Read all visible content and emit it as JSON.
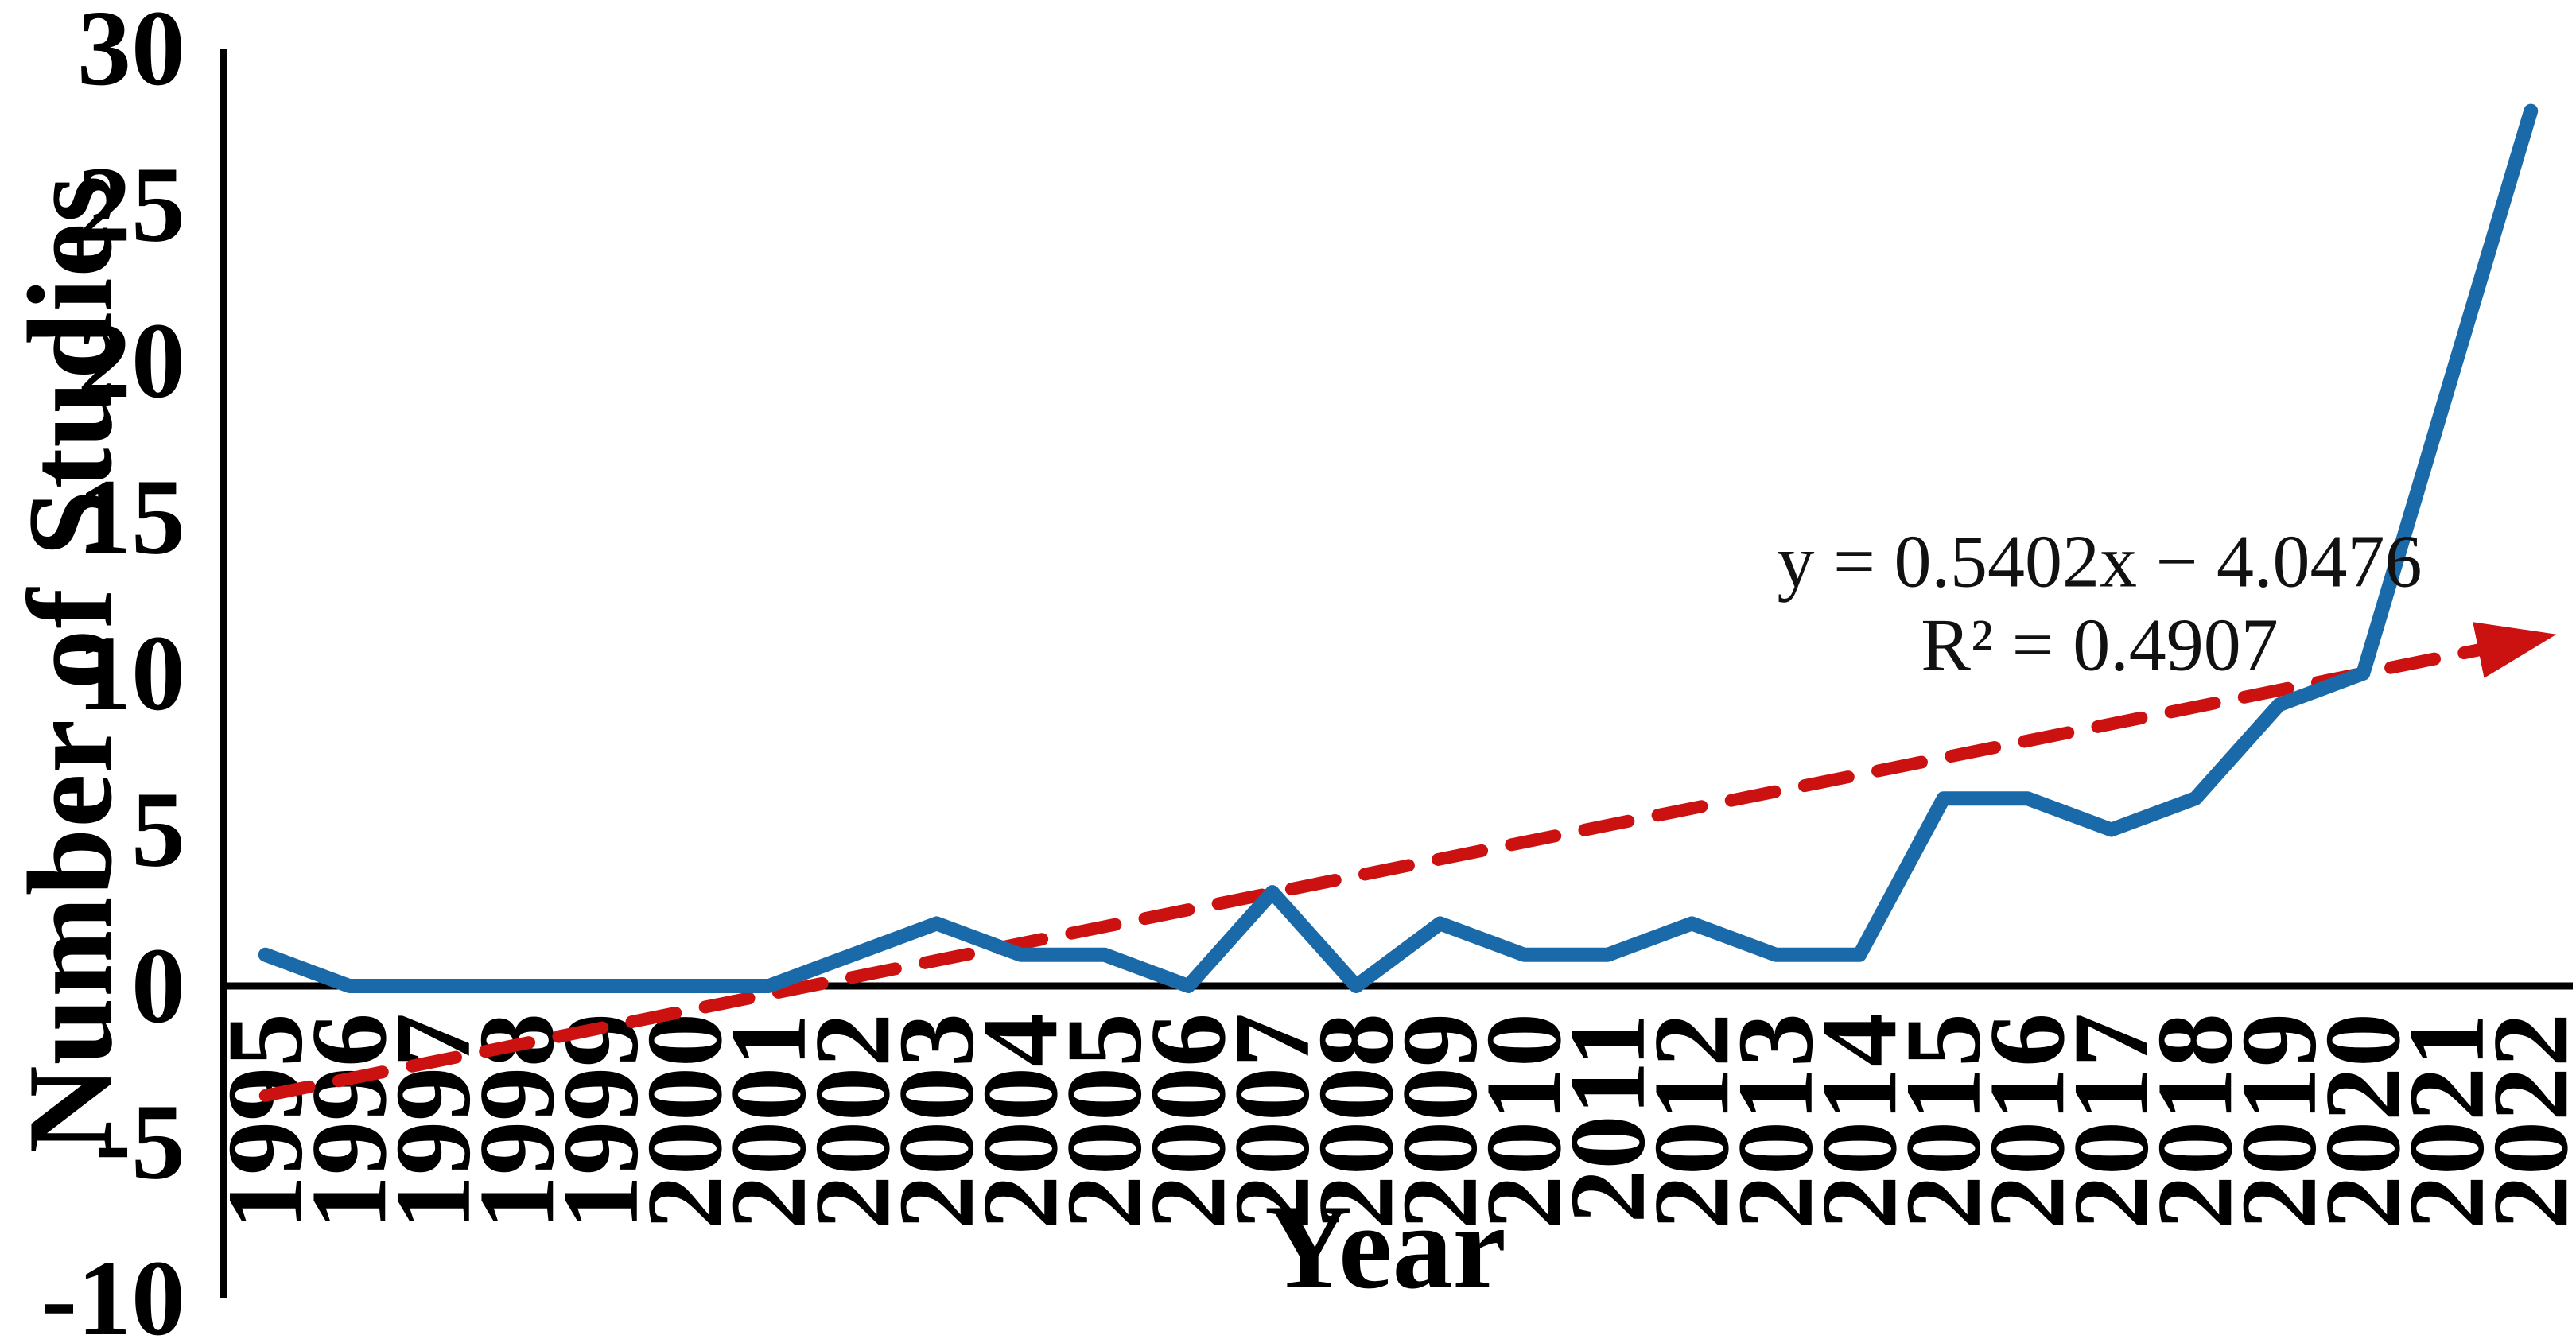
{
  "chart_data": {
    "type": "line",
    "title": "",
    "xlabel": "Year",
    "ylabel": "Number of Studies",
    "x": [
      "1995",
      "1996",
      "1997",
      "1998",
      "1999",
      "2000",
      "2001",
      "2002",
      "2003",
      "2004",
      "2005",
      "2006",
      "2007",
      "2008",
      "2009",
      "2010",
      "2011",
      "2012",
      "2013",
      "2014",
      "2015",
      "2016",
      "2017",
      "2018",
      "2019",
      "2020",
      "2021",
      "2022"
    ],
    "series": [
      {
        "name": "Number of Studies",
        "values": [
          1,
          0,
          0,
          0,
          0,
          0,
          0,
          1,
          2,
          1,
          1,
          0,
          3,
          0,
          2,
          1,
          1,
          2,
          1,
          1,
          6,
          6,
          5,
          6,
          9,
          10,
          19,
          28
        ],
        "color": "#1a69a9"
      }
    ],
    "trendline": {
      "equation": "y = 0.5402x − 4.0476",
      "r2": "R² = 0.4907",
      "slope": 0.5402,
      "intercept": -4.0476,
      "color": "#cc1111",
      "style": "dashed",
      "arrow": true
    },
    "ylim": [
      -10,
      30
    ],
    "yticks": [
      30,
      25,
      20,
      15,
      10,
      5,
      0,
      -5,
      -10
    ],
    "grid": false,
    "legend": "none",
    "x_tick_rotation": -90,
    "axis_color": "#000000"
  }
}
